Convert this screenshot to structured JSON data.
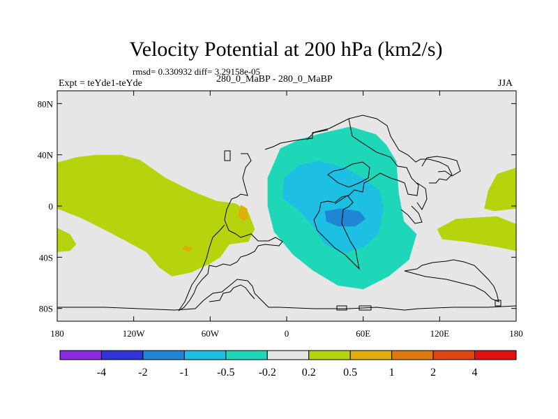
{
  "chart_data": {
    "type": "filled-contour map",
    "title": "Velocity Potential at 200 hPa (km2/s)",
    "stats": "rmsd= 0.330932 diff= 3.29158e-05",
    "left_label": "Expt = teYde1-teYde",
    "center_label": "280_0_MaBP - 280_0_MaBP",
    "right_label": "JJA",
    "x_range": [
      -180,
      180
    ],
    "y_range": [
      -90,
      90
    ],
    "x_ticks": [
      {
        "value": -180,
        "label": "180"
      },
      {
        "value": -120,
        "label": "120W"
      },
      {
        "value": -60,
        "label": "60W"
      },
      {
        "value": 0,
        "label": "0"
      },
      {
        "value": 60,
        "label": "60E"
      },
      {
        "value": 120,
        "label": "120E"
      },
      {
        "value": 180,
        "label": "180"
      }
    ],
    "y_ticks": [
      {
        "value": 80,
        "label": "80N"
      },
      {
        "value": 40,
        "label": "40N"
      },
      {
        "value": 0,
        "label": "0"
      },
      {
        "value": -40,
        "label": "40S"
      },
      {
        "value": -80,
        "label": "80S"
      }
    ],
    "colorbar": {
      "colors": [
        "#8a2be2",
        "#2f33d8",
        "#1f86d6",
        "#1dbfe3",
        "#1ed7b8",
        "#e6e6e6",
        "#b7d30d",
        "#dfae0a",
        "#e07a10",
        "#e04510",
        "#e00f10"
      ],
      "labels": [
        "-4",
        "-2",
        "-1",
        "-0.5",
        "-0.2",
        "0.2",
        "0.5",
        "1",
        "2",
        "4"
      ]
    },
    "regions": [
      {
        "level": "0.2 to 0.5",
        "color": "#b7d30d",
        "area": "Pacific / western Atlantic",
        "coords": [
          [
            -180,
            34
          ],
          [
            -165,
            38
          ],
          [
            -150,
            40
          ],
          [
            -130,
            40
          ],
          [
            -115,
            36
          ],
          [
            -95,
            22
          ],
          [
            -75,
            12
          ],
          [
            -55,
            4
          ],
          [
            -40,
            2
          ],
          [
            -30,
            -5
          ],
          [
            -25,
            -18
          ],
          [
            -30,
            -28
          ],
          [
            -45,
            -30
          ],
          [
            -52,
            -40
          ],
          [
            -60,
            -45
          ],
          [
            -75,
            -52
          ],
          [
            -90,
            -55
          ],
          [
            -100,
            -48
          ],
          [
            -110,
            -36
          ],
          [
            -125,
            -28
          ],
          [
            -140,
            -20
          ],
          [
            -160,
            -10
          ],
          [
            -180,
            -2
          ]
        ]
      },
      {
        "level": "0.2 to 0.5",
        "color": "#b7d30d",
        "area": "South Pacific edge",
        "coords": [
          [
            -180,
            -17
          ],
          [
            -170,
            -22
          ],
          [
            -165,
            -30
          ],
          [
            -170,
            -35
          ],
          [
            -180,
            -36
          ]
        ]
      },
      {
        "level": "0.5 to 1",
        "color": "#dfae0a",
        "area": "Atlantic",
        "coords": [
          [
            -36,
            1
          ],
          [
            -31,
            -2
          ],
          [
            -30,
            -9
          ],
          [
            -34,
            -12
          ],
          [
            -38,
            -7
          ]
        ]
      },
      {
        "level": "0.5 to 1",
        "color": "#dfae0a",
        "area": "South Atlantic",
        "coords": [
          [
            -80,
            -31
          ],
          [
            -74,
            -33
          ],
          [
            -76,
            -36
          ],
          [
            -82,
            -34
          ]
        ]
      },
      {
        "level": "0.2 to 0.5",
        "color": "#b7d30d",
        "area": "Western Pacific (north)",
        "coords": [
          [
            165,
            25
          ],
          [
            180,
            30
          ],
          [
            180,
            -2
          ],
          [
            163,
            -4
          ],
          [
            155,
            -2
          ],
          [
            158,
            12
          ]
        ]
      },
      {
        "level": "0.2 to 0.5",
        "color": "#b7d30d",
        "area": "Western Pacific (south)",
        "coords": [
          [
            118,
            -18
          ],
          [
            133,
            -10
          ],
          [
            165,
            -8
          ],
          [
            180,
            -14
          ],
          [
            180,
            -35
          ],
          [
            165,
            -32
          ],
          [
            140,
            -28
          ],
          [
            122,
            -26
          ]
        ]
      },
      {
        "level": "-0.5 to -0.2",
        "color": "#1ed7b8",
        "area": "Africa / Indian Ocean",
        "coords": [
          [
            -5,
            45
          ],
          [
            10,
            52
          ],
          [
            28,
            57
          ],
          [
            50,
            62
          ],
          [
            70,
            56
          ],
          [
            78,
            48
          ],
          [
            86,
            35
          ],
          [
            88,
            10
          ],
          [
            92,
            -12
          ],
          [
            102,
            -22
          ],
          [
            96,
            -42
          ],
          [
            80,
            -55
          ],
          [
            60,
            -65
          ],
          [
            40,
            -62
          ],
          [
            20,
            -50
          ],
          [
            5,
            -38
          ],
          [
            -10,
            -20
          ],
          [
            -15,
            0
          ],
          [
            -15,
            22
          ]
        ]
      },
      {
        "level": "-1 to -0.5",
        "color": "#1dbfe3",
        "area": "Africa / Indian Ocean",
        "coords": [
          [
            10,
            32
          ],
          [
            25,
            35
          ],
          [
            45,
            30
          ],
          [
            60,
            22
          ],
          [
            73,
            12
          ],
          [
            76,
            -2
          ],
          [
            72,
            -22
          ],
          [
            60,
            -32
          ],
          [
            45,
            -37
          ],
          [
            30,
            -30
          ],
          [
            20,
            -15
          ],
          [
            8,
            -2
          ],
          [
            -3,
            6
          ],
          [
            -2,
            22
          ]
        ]
      },
      {
        "level": "-2 to -1",
        "color": "#1f86d6",
        "area": "Indian Ocean",
        "coords": [
          [
            30,
            -4
          ],
          [
            42,
            -2
          ],
          [
            57,
            -4
          ],
          [
            62,
            -10
          ],
          [
            54,
            -16
          ],
          [
            40,
            -16
          ],
          [
            31,
            -12
          ]
        ]
      }
    ]
  }
}
